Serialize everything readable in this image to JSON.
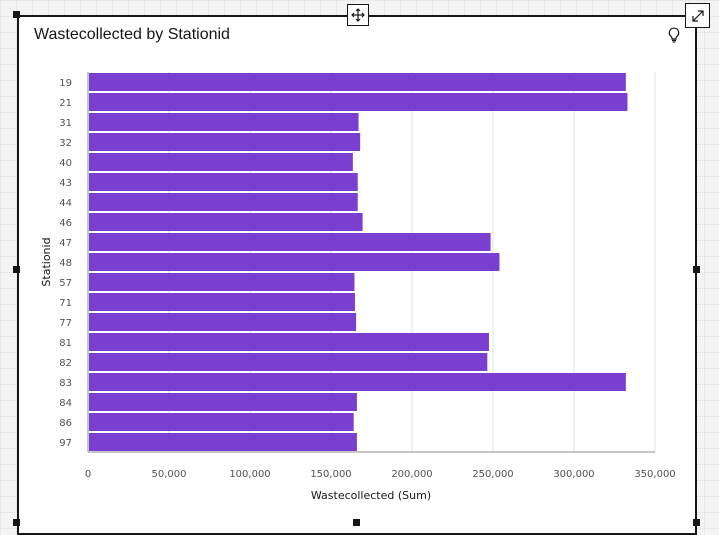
{
  "widget": {
    "title": "Wastecollected by Stationid"
  },
  "icons": {
    "move": "move-icon",
    "expand": "expand-icon",
    "insight": "lightbulb-icon"
  },
  "colors": {
    "bar": "#7a3fd0",
    "grid": "#e0e0e0",
    "axis": "#8d8d8d"
  },
  "chart_data": {
    "type": "bar",
    "orientation": "horizontal",
    "title": "Wastecollected by Stationid",
    "xlabel": "Wastecollected (Sum)",
    "ylabel": "Stationid",
    "categories": [
      "19",
      "21",
      "31",
      "32",
      "40",
      "43",
      "44",
      "46",
      "47",
      "48",
      "57",
      "71",
      "77",
      "81",
      "82",
      "83",
      "84",
      "86",
      "97"
    ],
    "values": [
      332000,
      333000,
      167000,
      168000,
      163500,
      166500,
      166500,
      169500,
      248500,
      254000,
      164500,
      164800,
      165500,
      247500,
      246500,
      332000,
      166000,
      164000,
      166000
    ],
    "xlim": [
      0,
      350000
    ],
    "xticks": [
      "0",
      "50,000",
      "100,000",
      "150,000",
      "200,000",
      "250,000",
      "300,000",
      "350,000"
    ],
    "grid": true,
    "legend": "none"
  }
}
